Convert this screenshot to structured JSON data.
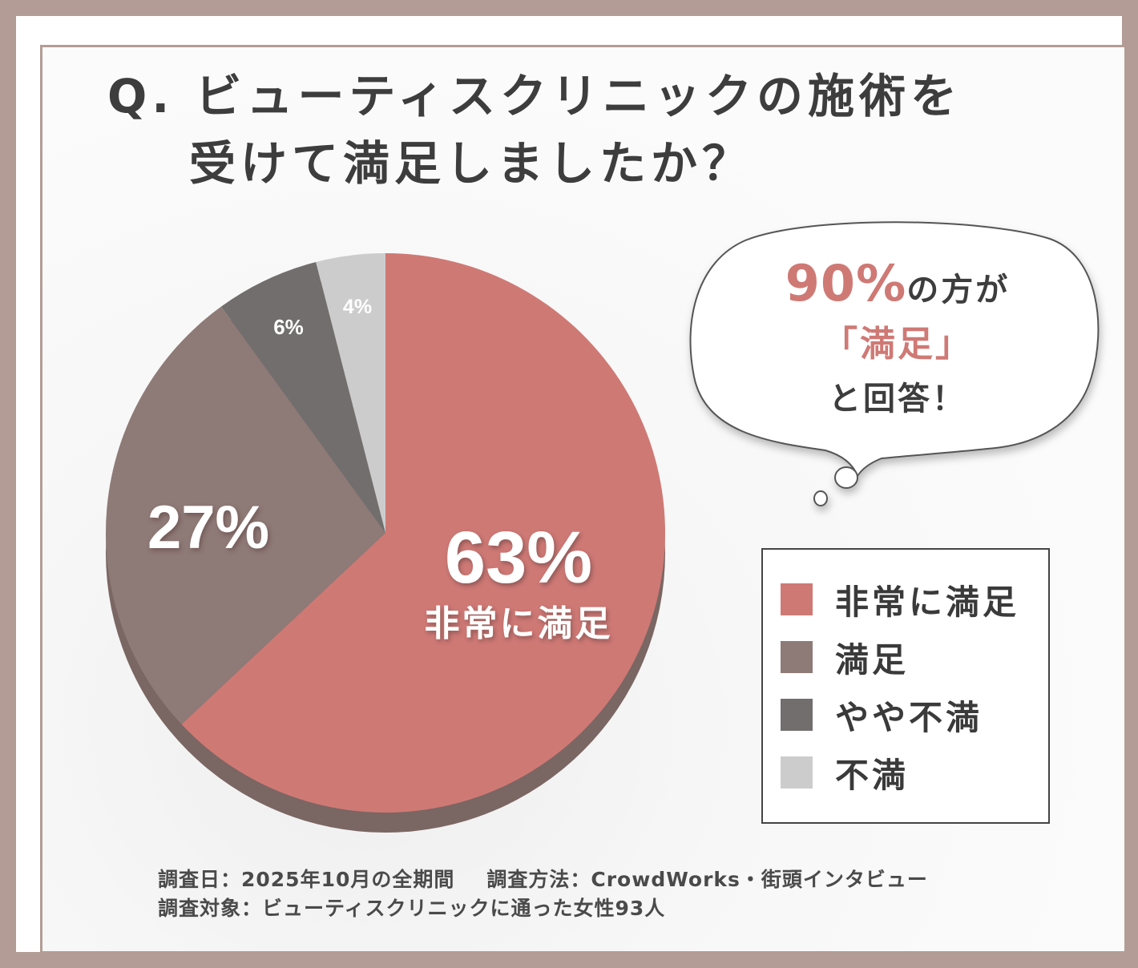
{
  "title": {
    "line1": "Q. ビューティスクリニックの施術を",
    "line2": "受けて満足しましたか？"
  },
  "chart_data": {
    "type": "pie",
    "categories": [
      "非常に満足",
      "満足",
      "やや不満",
      "不満"
    ],
    "values": [
      63,
      27,
      6,
      4
    ],
    "value_labels": [
      "63%",
      "27%",
      "6%",
      "4%"
    ],
    "colors": [
      "#cf7975",
      "#8e7a77",
      "#726e6e",
      "#cccccc"
    ],
    "slice_inner_label": "非常に満足",
    "legend_placement": "right"
  },
  "bubble": {
    "percent": "90%",
    "line1_rest": "の方が",
    "line2": "「満足」",
    "line3": "と回答！"
  },
  "legend": {
    "items": [
      {
        "label": "非常に満足",
        "color": "#cf7975"
      },
      {
        "label": "満足",
        "color": "#8e7a77"
      },
      {
        "label": "やや不満",
        "color": "#726e6e"
      },
      {
        "label": "不満",
        "color": "#cccccc"
      }
    ]
  },
  "footer": {
    "date": "調査日：2025年10月の全期間",
    "method": "調査方法：CrowdWorks・街頭インタビュー",
    "target": "調査対象：ビューティスクリニックに通った女性93人"
  }
}
